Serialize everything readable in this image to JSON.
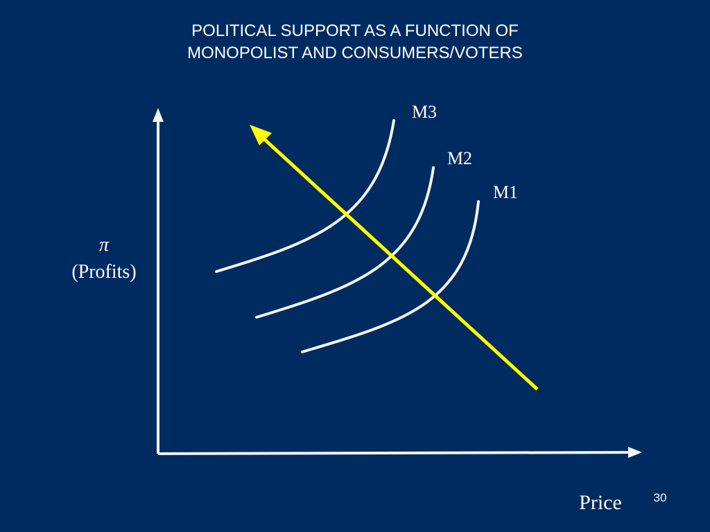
{
  "title": {
    "lines": [
      "POLITICAL SUPPORT AS A FUNCTION OF",
      "MONOPOLIST AND CONSUMERS/VOTERS"
    ]
  },
  "y_axis": {
    "symbol": "π",
    "label": "(Profits)"
  },
  "x_axis": {
    "label": "Price"
  },
  "curves": [
    {
      "label": "M3"
    },
    {
      "label": "M2"
    },
    {
      "label": "M1"
    }
  ],
  "page_number": "30"
}
